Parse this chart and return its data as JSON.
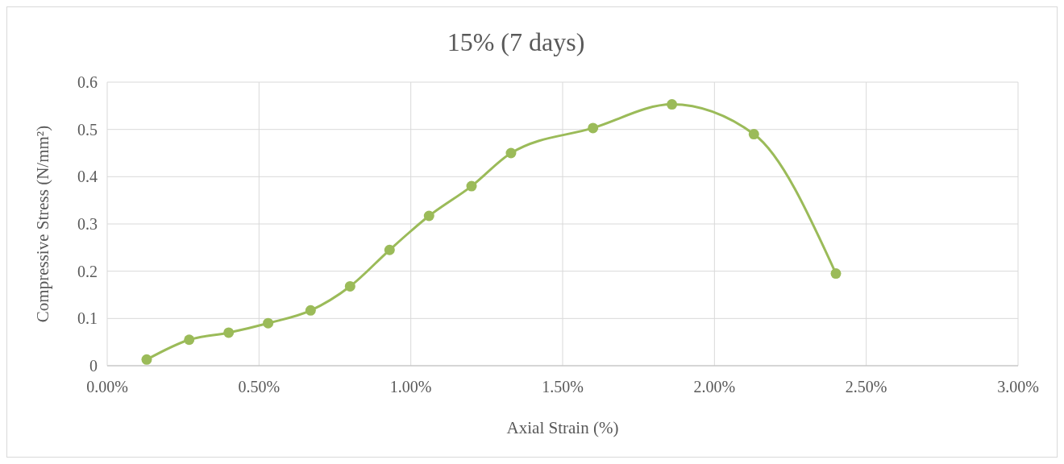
{
  "chart_data": {
    "type": "line",
    "title": "15% (7 days)",
    "xlabel": "Axial Strain (%)",
    "ylabel": "Compressive Stress (N/mm²)",
    "x": [
      0.13,
      0.27,
      0.4,
      0.53,
      0.67,
      0.8,
      0.93,
      1.06,
      1.2,
      1.33,
      1.6,
      1.86,
      2.13,
      2.4
    ],
    "series": [
      {
        "color": "#9bbb59",
        "values": [
          0.013,
          0.055,
          0.07,
          0.09,
          0.117,
          0.168,
          0.245,
          0.317,
          0.38,
          0.45,
          0.503,
          0.553,
          0.49,
          0.195
        ]
      }
    ],
    "xlim": [
      0,
      3
    ],
    "xticks": [
      {
        "value": 0,
        "label": "0.00%"
      },
      {
        "value": 0.5,
        "label": "0.50%"
      },
      {
        "value": 1,
        "label": "1.00%"
      },
      {
        "value": 1.5,
        "label": "1.50%"
      },
      {
        "value": 2,
        "label": "2.00%"
      },
      {
        "value": 2.5,
        "label": "2.50%"
      },
      {
        "value": 3,
        "label": "3.00%"
      }
    ],
    "ylim": [
      0,
      0.6
    ],
    "yticks": [
      0,
      0.1,
      0.2,
      0.3,
      0.4,
      0.5,
      0.6
    ],
    "grid": true,
    "marker": "circle",
    "line_style": "solid"
  }
}
